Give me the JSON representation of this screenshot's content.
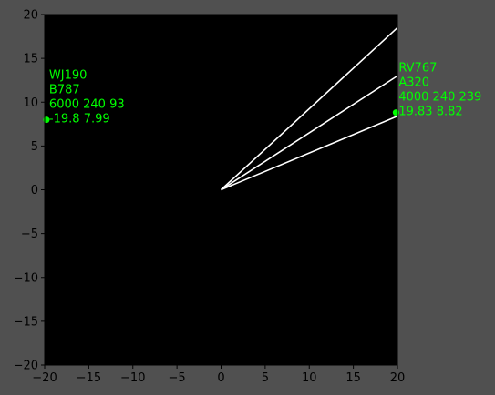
{
  "chart_data": {
    "type": "scatter",
    "title": "",
    "xlabel": "",
    "ylabel": "",
    "xlim": [
      -20,
      20
    ],
    "ylim": [
      -20,
      20
    ],
    "xticks": [
      "−20",
      "−15",
      "−10",
      "−5",
      "0",
      "5",
      "10",
      "15",
      "20"
    ],
    "yticks": [
      "20",
      "15",
      "10",
      "5",
      "0",
      "−5",
      "−10",
      "−15",
      "−20"
    ],
    "grid": false,
    "colors": {
      "figure_bg": "#505050",
      "axes_bg": "#000000",
      "marker": "#00ff00",
      "line": "#ffffff",
      "text": "#000000"
    },
    "aircraft": [
      {
        "x": -19.8,
        "y": 7.99,
        "labels": [
          "WJ190",
          "B787",
          "6000 240 93",
          "-19.8 7.99"
        ]
      },
      {
        "x": 19.83,
        "y": 8.82,
        "labels": [
          "RV767",
          "A320",
          "4000 240 239",
          "19.83 8.82"
        ]
      }
    ],
    "lines": [
      {
        "from": [
          0,
          0
        ],
        "to": [
          20,
          18.5
        ]
      },
      {
        "from": [
          0,
          0
        ],
        "to": [
          20,
          13.0
        ]
      },
      {
        "from": [
          0,
          0
        ],
        "to": [
          20,
          8.4
        ]
      }
    ]
  }
}
